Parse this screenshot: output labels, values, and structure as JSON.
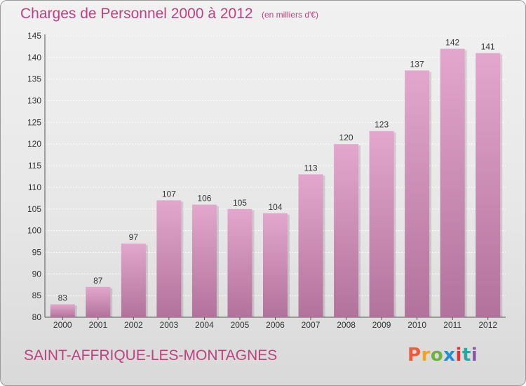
{
  "header": {
    "title": "Charges de Personnel 2000 à 2012",
    "subtitle": "(en milliers d'€)"
  },
  "footer": {
    "commune": "SAINT-AFFRIQUE-LES-MONTAGNES",
    "logo_text": "Proxiti"
  },
  "colors": {
    "accent": "#c0417f",
    "bar_top": "#e3a6cc",
    "bar_bottom": "#b1739b"
  },
  "chart_data": {
    "type": "bar",
    "title": "Charges de Personnel 2000 à 2012",
    "subtitle": "(en milliers d'€)",
    "categories": [
      "2000",
      "2001",
      "2002",
      "2003",
      "2004",
      "2005",
      "2006",
      "2007",
      "2008",
      "2009",
      "2010",
      "2011",
      "2012"
    ],
    "values": [
      83,
      87,
      97,
      107,
      106,
      105,
      104,
      113,
      120,
      123,
      137,
      142,
      141
    ],
    "ylim": [
      80,
      145
    ],
    "yticks": [
      80,
      85,
      90,
      95,
      100,
      105,
      110,
      115,
      120,
      125,
      130,
      135,
      140,
      145
    ],
    "grid": true,
    "legend": "none"
  }
}
